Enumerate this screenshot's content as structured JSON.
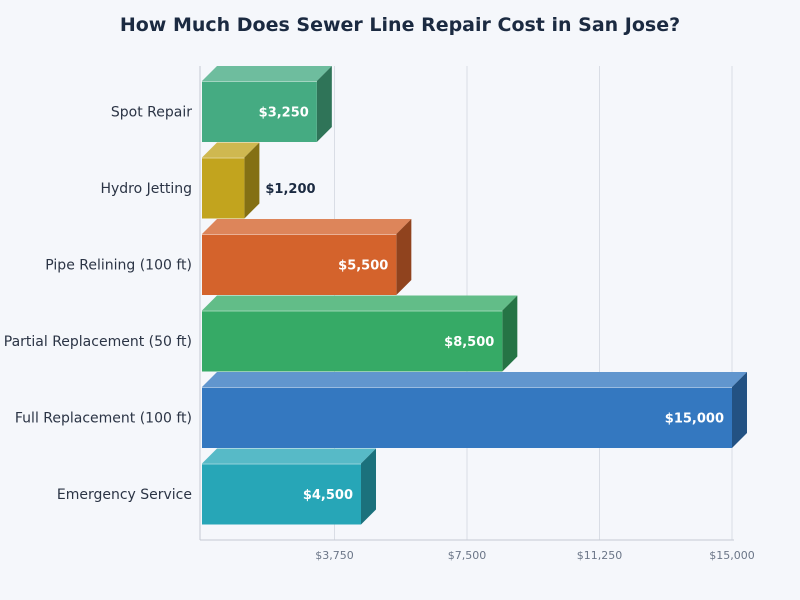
{
  "chart_data": {
    "type": "bar",
    "orientation": "horizontal",
    "title": "How Much Does Sewer Line Repair Cost in San Jose?",
    "categories": [
      "Spot Repair",
      "Hydro Jetting",
      "Pipe Relining (100 ft)",
      "Partial Replacement (50 ft)",
      "Full Replacement (100 ft)",
      "Emergency Service"
    ],
    "values": [
      3250,
      1200,
      5500,
      8500,
      15000,
      4500
    ],
    "value_labels": [
      "$3,250",
      "$1,200",
      "$5,500",
      "$8,500",
      "$15,000",
      "$4,500"
    ],
    "colors": [
      "#45ab82",
      "#c2a41e",
      "#d4632c",
      "#36aa66",
      "#3478c0",
      "#27a6b7"
    ],
    "xlim": [
      0,
      15000
    ],
    "x_ticks": [
      3750,
      7500,
      11250,
      15000
    ],
    "x_tick_labels": [
      "$3,750",
      "$7,500",
      "$11,250",
      "$15,000"
    ],
    "grid": true,
    "style": "3d"
  }
}
